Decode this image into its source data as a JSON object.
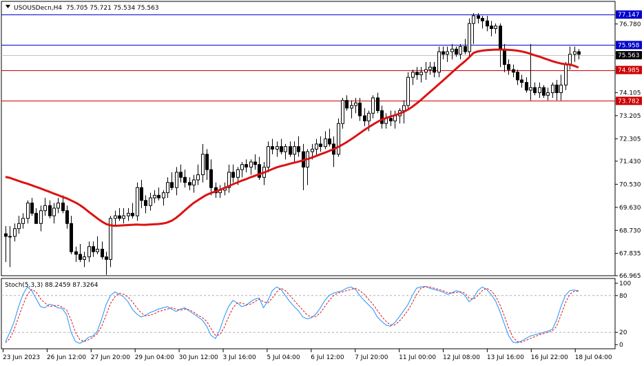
{
  "header": {
    "symbol": "USOUSDecn,H4",
    "ohlc": "75.705 75.721 75.534 75.563"
  },
  "colors": {
    "background": "#ffffff",
    "foreground": "#000000",
    "ma_line": "#dd1111",
    "level_blue": "#0000cc",
    "level_red": "#cc0000",
    "current_price_line": "#c0c0c0",
    "stoch_main": "#1e90ff",
    "stoch_signal": "#dd1111",
    "stoch_levels": "#b0b0b0"
  },
  "chart_data": [
    {
      "type": "candlestick",
      "ylim": [
        66.965,
        77.6
      ],
      "y_ticks": [
        66.965,
        67.835,
        68.73,
        69.63,
        70.53,
        71.43,
        72.305,
        73.205,
        74.105,
        76.78
      ],
      "x_labels": [
        "23 Jun 2023",
        "26 Jun 12:00",
        "27 Jun 20:00",
        "29 Jun 04:00",
        "30 Jun 12:00",
        "3 Jul 16:00",
        "5 Jul 04:00",
        "6 Jul 12:00",
        "7 Jul 20:00",
        "11 Jul 00:00",
        "12 Jul 08:00",
        "13 Jul 16:00",
        "16 Jul 22:00",
        "18 Jul 04:00"
      ],
      "price_levels": [
        {
          "value": 77.147,
          "label": "77.147",
          "color": "#0000cc"
        },
        {
          "value": 75.958,
          "label": "75.958",
          "color": "#0000cc"
        },
        {
          "value": 74.985,
          "label": "74.985",
          "color": "#cc0000"
        },
        {
          "value": 73.782,
          "label": "73.782",
          "color": "#cc0000"
        }
      ],
      "current_price": {
        "value": 75.563,
        "label": "75.563"
      },
      "candles_ohlc": [
        [
          68.6,
          68.9,
          67.5,
          68.5
        ],
        [
          68.5,
          68.9,
          67.3,
          68.5
        ],
        [
          68.5,
          69.0,
          68.3,
          68.8
        ],
        [
          68.8,
          69.3,
          68.6,
          69.0
        ],
        [
          69.0,
          69.4,
          68.8,
          69.2
        ],
        [
          69.2,
          69.9,
          69.0,
          69.8
        ],
        [
          69.8,
          70.0,
          69.3,
          69.4
        ],
        [
          69.4,
          69.6,
          69.0,
          69.0
        ],
        [
          69.0,
          69.7,
          68.7,
          69.5
        ],
        [
          69.5,
          70.0,
          69.3,
          69.7
        ],
        [
          69.7,
          69.9,
          69.2,
          69.3
        ],
        [
          69.3,
          69.8,
          69.0,
          69.6
        ],
        [
          69.6,
          70.0,
          69.4,
          69.8
        ],
        [
          69.8,
          70.1,
          69.4,
          69.5
        ],
        [
          69.5,
          69.7,
          68.8,
          69.0
        ],
        [
          69.0,
          69.3,
          67.8,
          67.9
        ],
        [
          67.9,
          68.1,
          67.5,
          67.8
        ],
        [
          67.8,
          68.2,
          67.5,
          67.6
        ],
        [
          67.6,
          67.9,
          67.3,
          67.7
        ],
        [
          67.7,
          68.3,
          67.5,
          68.1
        ],
        [
          68.1,
          68.3,
          67.7,
          67.9
        ],
        [
          67.9,
          68.5,
          67.8,
          68.0
        ],
        [
          68.0,
          68.3,
          67.6,
          67.7
        ],
        [
          67.7,
          67.9,
          67.0,
          67.6
        ],
        [
          67.6,
          69.3,
          67.3,
          69.2
        ],
        [
          69.2,
          69.5,
          68.9,
          69.3
        ],
        [
          69.3,
          69.6,
          69.1,
          69.2
        ],
        [
          69.2,
          69.6,
          69.0,
          69.3
        ],
        [
          69.3,
          69.6,
          69.1,
          69.4
        ],
        [
          69.4,
          69.8,
          69.2,
          69.3
        ],
        [
          69.3,
          70.6,
          69.1,
          70.4
        ],
        [
          70.4,
          70.7,
          69.6,
          69.9
        ],
        [
          69.9,
          70.1,
          69.4,
          69.7
        ],
        [
          69.7,
          70.2,
          69.5,
          70.0
        ],
        [
          70.0,
          70.3,
          69.8,
          70.1
        ],
        [
          70.1,
          70.4,
          69.9,
          70.0
        ],
        [
          70.0,
          70.3,
          69.7,
          70.2
        ],
        [
          70.2,
          70.8,
          70.0,
          70.6
        ],
        [
          70.6,
          71.0,
          70.3,
          70.4
        ],
        [
          70.4,
          71.2,
          70.1,
          71.0
        ],
        [
          71.0,
          71.3,
          70.6,
          70.8
        ],
        [
          70.8,
          71.1,
          70.4,
          70.6
        ],
        [
          70.6,
          70.8,
          70.3,
          70.5
        ],
        [
          70.5,
          70.9,
          70.2,
          70.7
        ],
        [
          70.7,
          71.3,
          70.5,
          70.9
        ],
        [
          70.9,
          72.1,
          70.6,
          71.7
        ],
        [
          71.7,
          71.9,
          70.7,
          71.1
        ],
        [
          71.1,
          71.5,
          70.1,
          70.4
        ],
        [
          70.4,
          70.6,
          70.0,
          70.2
        ],
        [
          70.2,
          70.5,
          70.0,
          70.3
        ],
        [
          70.3,
          70.6,
          70.1,
          70.4
        ],
        [
          70.4,
          71.3,
          70.2,
          71.0
        ],
        [
          71.0,
          71.3,
          70.6,
          70.8
        ],
        [
          70.8,
          71.2,
          70.5,
          71.1
        ],
        [
          71.1,
          71.4,
          70.8,
          71.3
        ],
        [
          71.3,
          71.5,
          71.0,
          71.2
        ],
        [
          71.2,
          71.5,
          70.9,
          71.4
        ],
        [
          71.4,
          71.7,
          71.1,
          71.3
        ],
        [
          71.3,
          71.6,
          70.7,
          70.8
        ],
        [
          70.8,
          71.4,
          70.5,
          71.2
        ],
        [
          71.2,
          72.2,
          71.0,
          72.0
        ],
        [
          72.0,
          72.3,
          71.7,
          71.9
        ],
        [
          71.9,
          72.2,
          71.6,
          72.0
        ],
        [
          72.0,
          72.3,
          71.7,
          71.8
        ],
        [
          71.8,
          72.1,
          71.5,
          72.0
        ],
        [
          72.0,
          72.2,
          71.6,
          71.7
        ],
        [
          71.7,
          72.2,
          71.4,
          72.0
        ],
        [
          72.0,
          72.4,
          71.6,
          71.8
        ],
        [
          71.8,
          72.1,
          70.3,
          71.2
        ],
        [
          71.2,
          71.9,
          70.5,
          71.8
        ],
        [
          71.8,
          72.1,
          71.5,
          71.9
        ],
        [
          71.9,
          72.3,
          71.6,
          72.1
        ],
        [
          72.1,
          72.4,
          71.8,
          72.0
        ],
        [
          72.0,
          72.6,
          71.9,
          72.3
        ],
        [
          72.3,
          72.7,
          72.0,
          72.1
        ],
        [
          72.1,
          72.4,
          71.2,
          71.7
        ],
        [
          71.7,
          73.1,
          71.6,
          72.9
        ],
        [
          72.9,
          73.9,
          72.7,
          73.8
        ],
        [
          73.8,
          74.0,
          73.4,
          73.5
        ],
        [
          73.5,
          73.8,
          73.1,
          73.6
        ],
        [
          73.6,
          73.9,
          73.3,
          73.7
        ],
        [
          73.7,
          73.9,
          73.0,
          73.2
        ],
        [
          73.2,
          73.5,
          72.8,
          73.0
        ],
        [
          73.0,
          73.4,
          72.6,
          73.3
        ],
        [
          73.3,
          74.0,
          73.1,
          73.9
        ],
        [
          73.9,
          74.1,
          73.3,
          73.4
        ],
        [
          73.4,
          73.6,
          72.7,
          72.9
        ],
        [
          72.9,
          73.3,
          72.7,
          73.1
        ],
        [
          73.1,
          73.4,
          72.8,
          73.0
        ],
        [
          73.0,
          73.4,
          72.7,
          73.2
        ],
        [
          73.2,
          73.5,
          72.9,
          73.4
        ],
        [
          73.4,
          73.8,
          72.9,
          73.6
        ],
        [
          73.6,
          74.9,
          73.4,
          74.7
        ],
        [
          74.7,
          75.0,
          74.4,
          74.9
        ],
        [
          74.9,
          75.1,
          74.6,
          74.8
        ],
        [
          74.8,
          75.1,
          74.5,
          74.9
        ],
        [
          74.9,
          75.3,
          74.6,
          75.0
        ],
        [
          75.0,
          75.3,
          74.8,
          75.1
        ],
        [
          75.1,
          75.3,
          74.7,
          74.9
        ],
        [
          74.9,
          75.9,
          74.7,
          75.7
        ],
        [
          75.7,
          75.9,
          75.4,
          75.6
        ],
        [
          75.6,
          75.9,
          75.3,
          75.7
        ],
        [
          75.7,
          76.0,
          75.4,
          75.8
        ],
        [
          75.8,
          75.9,
          75.5,
          75.6
        ],
        [
          75.6,
          76.0,
          75.4,
          75.9
        ],
        [
          75.9,
          76.2,
          75.6,
          75.7
        ],
        [
          75.7,
          77.0,
          75.5,
          76.8
        ],
        [
          76.8,
          77.2,
          76.0,
          77.1
        ],
        [
          77.1,
          77.2,
          76.8,
          77.0
        ],
        [
          77.0,
          77.1,
          76.6,
          76.9
        ],
        [
          76.9,
          77.1,
          76.5,
          76.7
        ],
        [
          76.7,
          76.9,
          76.3,
          76.6
        ],
        [
          76.6,
          76.8,
          76.4,
          76.7
        ],
        [
          76.7,
          76.8,
          75.1,
          75.8
        ],
        [
          75.8,
          76.0,
          74.9,
          75.2
        ],
        [
          75.2,
          75.4,
          74.8,
          75.0
        ],
        [
          75.0,
          75.2,
          74.7,
          74.9
        ],
        [
          74.9,
          75.0,
          74.4,
          74.6
        ],
        [
          74.6,
          74.8,
          74.3,
          74.5
        ],
        [
          74.5,
          74.7,
          74.1,
          74.2
        ],
        [
          74.2,
          76.0,
          73.8,
          74.3
        ],
        [
          74.3,
          74.5,
          74.0,
          74.1
        ],
        [
          74.1,
          74.5,
          73.9,
          74.3
        ],
        [
          74.3,
          74.4,
          73.9,
          74.0
        ],
        [
          74.0,
          74.3,
          73.8,
          74.1
        ],
        [
          74.1,
          74.5,
          73.9,
          74.4
        ],
        [
          74.4,
          74.6,
          73.8,
          74.1
        ],
        [
          74.1,
          74.8,
          73.8,
          74.4
        ],
        [
          74.4,
          75.3,
          74.2,
          75.2
        ],
        [
          75.2,
          75.9,
          75.0,
          75.6
        ],
        [
          75.6,
          75.9,
          75.3,
          75.7
        ],
        [
          75.7,
          75.8,
          75.4,
          75.6
        ]
      ],
      "ma_values": [
        70.82,
        70.78,
        70.72,
        70.66,
        70.6,
        70.55,
        70.49,
        70.43,
        70.37,
        70.3,
        70.24,
        70.17,
        70.11,
        70.04,
        69.98,
        69.9,
        69.82,
        69.72,
        69.6,
        69.46,
        69.33,
        69.2,
        69.08,
        68.98,
        68.93,
        68.91,
        68.92,
        68.93,
        68.94,
        68.95,
        68.96,
        68.95,
        68.95,
        68.96,
        68.97,
        68.98,
        69.0,
        69.04,
        69.11,
        69.22,
        69.36,
        69.51,
        69.66,
        69.8,
        69.91,
        70.02,
        70.12,
        70.19,
        70.25,
        70.31,
        70.38,
        70.45,
        70.53,
        70.6,
        70.67,
        70.73,
        70.8,
        70.86,
        70.92,
        70.98,
        71.05,
        71.12,
        71.19,
        71.24,
        71.28,
        71.33,
        71.37,
        71.41,
        71.46,
        71.51,
        71.57,
        71.63,
        71.7,
        71.76,
        71.83,
        71.9,
        71.98,
        72.07,
        72.17,
        72.28,
        72.4,
        72.52,
        72.64,
        72.75,
        72.86,
        72.96,
        73.05,
        73.11,
        73.17,
        73.22,
        73.28,
        73.35,
        73.44,
        73.55,
        73.68,
        73.82,
        73.97,
        74.12,
        74.27,
        74.42,
        74.57,
        74.72,
        74.88,
        75.03,
        75.18,
        75.32,
        75.48,
        75.65,
        75.71,
        75.74,
        75.76,
        75.77,
        75.78,
        75.78,
        75.78,
        75.77,
        75.76,
        75.74,
        75.71,
        75.67,
        75.62,
        75.56,
        75.51,
        75.45,
        75.39,
        75.33,
        75.28,
        75.24,
        75.21,
        75.2,
        75.15,
        75.08
      ]
    },
    {
      "type": "line",
      "indicator_label": "Stoch(5,3,3) 88.2459 87.3264",
      "ylim": [
        0,
        100
      ],
      "y_ticks": [
        0,
        20,
        80,
        100
      ],
      "levels": [
        20,
        80
      ],
      "series": [
        {
          "color": "#1e90ff",
          "values": [
            5,
            20,
            38,
            62,
            82,
            94,
            88,
            75,
            62,
            60,
            66,
            64,
            60,
            59,
            48,
            20,
            5,
            2,
            6,
            12,
            14,
            22,
            42,
            65,
            80,
            86,
            82,
            78,
            70,
            58,
            50,
            45,
            48,
            52,
            55,
            58,
            60,
            62,
            58,
            54,
            58,
            60,
            55,
            50,
            45,
            40,
            30,
            15,
            10,
            24,
            45,
            62,
            72,
            68,
            62,
            64,
            70,
            74,
            76,
            60,
            72,
            88,
            94,
            90,
            80,
            70,
            62,
            55,
            45,
            42,
            44,
            50,
            60,
            72,
            80,
            84,
            86,
            88,
            92,
            94,
            90,
            80,
            72,
            65,
            58,
            45,
            38,
            32,
            30,
            36,
            45,
            55,
            65,
            80,
            92,
            94,
            95,
            92,
            90,
            88,
            86,
            82,
            84,
            88,
            86,
            80,
            70,
            76,
            88,
            94,
            90,
            82,
            72,
            55,
            35,
            15,
            4,
            3,
            6,
            10,
            14,
            16,
            18,
            20,
            22,
            25,
            40,
            62,
            80,
            88,
            89,
            88
          ]
        },
        {
          "color": "#dd1111",
          "values": [
            3,
            10,
            25,
            45,
            65,
            82,
            90,
            86,
            75,
            68,
            62,
            63,
            64,
            61,
            56,
            40,
            20,
            8,
            5,
            8,
            12,
            18,
            30,
            48,
            67,
            78,
            84,
            82,
            78,
            70,
            60,
            52,
            47,
            48,
            50,
            54,
            56,
            58,
            60,
            58,
            56,
            58,
            57,
            53,
            48,
            44,
            38,
            26,
            15,
            16,
            28,
            45,
            60,
            68,
            68,
            65,
            66,
            70,
            74,
            70,
            68,
            76,
            86,
            92,
            88,
            80,
            72,
            64,
            56,
            48,
            45,
            46,
            52,
            62,
            72,
            80,
            84,
            86,
            88,
            90,
            92,
            88,
            82,
            74,
            66,
            56,
            46,
            38,
            32,
            32,
            38,
            46,
            56,
            68,
            82,
            92,
            94,
            94,
            92,
            90,
            88,
            85,
            84,
            85,
            86,
            84,
            76,
            74,
            80,
            88,
            92,
            88,
            80,
            66,
            48,
            28,
            12,
            5,
            4,
            7,
            10,
            13,
            16,
            18,
            20,
            22,
            30,
            48,
            68,
            82,
            87,
            87
          ]
        }
      ]
    }
  ]
}
